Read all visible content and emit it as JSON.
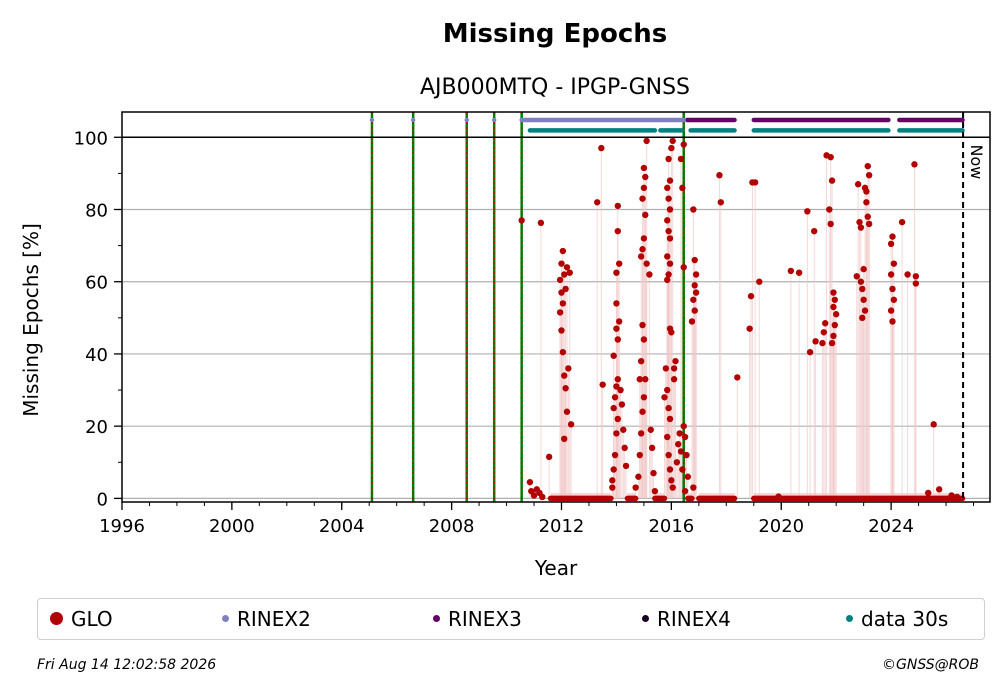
{
  "chart_data": {
    "type": "scatter",
    "title": "Missing Epochs",
    "subtitle": "AJB000MTQ - IPGP-GNSS",
    "xlabel": "Year",
    "ylabel": "Missing Epochs [%]",
    "xlim": [
      1996,
      2027.6
    ],
    "ylim": [
      -1,
      107
    ],
    "xticks": [
      1996,
      2000,
      2004,
      2008,
      2012,
      2016,
      2020,
      2024
    ],
    "yticks": [
      0,
      20,
      40,
      60,
      80,
      100
    ],
    "grid": true,
    "now_label": "Now",
    "now_x": 2026.62,
    "legend_position": "bottom",
    "legend": [
      {
        "name": "GLO",
        "color": "#b30000",
        "size": 6
      },
      {
        "name": "RINEX2",
        "color": "#8080c0",
        "size": 3
      },
      {
        "name": "RINEX3",
        "color": "#660066",
        "size": 3
      },
      {
        "name": "RINEX4",
        "color": "#1a0022",
        "size": 3
      },
      {
        "name": "data 30s",
        "color": "#008080",
        "size": 3
      }
    ],
    "event_lines_x": [
      2005.1,
      2006.6,
      2008.55,
      2009.55,
      2010.55,
      2016.45
    ],
    "availability_rows": [
      {
        "series": "RINEX2",
        "y": 104.8,
        "color": "#8080c0",
        "segments": [
          [
            2005.1,
            2005.1
          ],
          [
            2006.6,
            2006.6
          ],
          [
            2008.55,
            2008.55
          ],
          [
            2009.55,
            2009.55
          ],
          [
            2010.55,
            2016.6
          ]
        ]
      },
      {
        "series": "RINEX3",
        "y": 104.8,
        "color": "#660066",
        "segments": [
          [
            2016.6,
            2018.3
          ],
          [
            2019.0,
            2023.9
          ],
          [
            2024.3,
            2026.6
          ]
        ]
      },
      {
        "series": "data 30s",
        "y": 101.9,
        "color": "#008080",
        "segments": [
          [
            2010.85,
            2015.4
          ],
          [
            2015.6,
            2016.4
          ],
          [
            2016.7,
            2018.3
          ],
          [
            2019.0,
            2023.9
          ],
          [
            2024.3,
            2026.6
          ]
        ]
      }
    ],
    "glo_points": [
      [
        2010.55,
        77.0
      ],
      [
        2010.85,
        4.5
      ],
      [
        2010.9,
        2.0
      ],
      [
        2011.0,
        0.8
      ],
      [
        2011.2,
        1.5
      ],
      [
        2011.3,
        0.4
      ],
      [
        2011.1,
        2.5
      ],
      [
        2011.25,
        76.3
      ],
      [
        2011.55,
        11.5
      ],
      [
        2011.95,
        60.5
      ],
      [
        2012.0,
        65.0
      ],
      [
        2012.05,
        68.5
      ],
      [
        2012.1,
        62.0
      ],
      [
        2012.15,
        58.0
      ],
      [
        2012.2,
        64.0
      ],
      [
        2012.0,
        46.5
      ],
      [
        2012.05,
        40.5
      ],
      [
        2012.1,
        34.0
      ],
      [
        2012.15,
        30.5
      ],
      [
        2012.2,
        24.0
      ],
      [
        2012.1,
        16.5
      ],
      [
        2012.25,
        36.0
      ],
      [
        2012.35,
        20.5
      ],
      [
        2012.3,
        62.5
      ],
      [
        2012.0,
        57.0
      ],
      [
        2012.05,
        54.0
      ],
      [
        2011.95,
        51.5
      ],
      [
        2013.3,
        82.0
      ],
      [
        2013.45,
        97.0
      ],
      [
        2013.5,
        31.5
      ],
      [
        2013.85,
        5.0
      ],
      [
        2013.9,
        8.0
      ],
      [
        2013.95,
        12.0
      ],
      [
        2014.0,
        18.0
      ],
      [
        2014.05,
        22.0
      ],
      [
        2013.9,
        25.0
      ],
      [
        2013.95,
        28.0
      ],
      [
        2014.0,
        31.0
      ],
      [
        2014.05,
        33.0
      ],
      [
        2013.9,
        39.5
      ],
      [
        2014.0,
        47.0
      ],
      [
        2014.05,
        44.0
      ],
      [
        2014.1,
        49.0
      ],
      [
        2014.15,
        30.0
      ],
      [
        2014.2,
        26.0
      ],
      [
        2014.25,
        19.0
      ],
      [
        2014.3,
        14.0
      ],
      [
        2014.35,
        9.0
      ],
      [
        2014.0,
        62.5
      ],
      [
        2014.1,
        65.0
      ],
      [
        2014.05,
        74.0
      ],
      [
        2014.05,
        81.0
      ],
      [
        2014.0,
        54.0
      ],
      [
        2013.85,
        3.0
      ],
      [
        2014.7,
        3.0
      ],
      [
        2014.8,
        6.0
      ],
      [
        2014.85,
        12.0
      ],
      [
        2014.9,
        18.0
      ],
      [
        2014.95,
        24.0
      ],
      [
        2015.0,
        28.0
      ],
      [
        2015.05,
        33.0
      ],
      [
        2014.9,
        38.0
      ],
      [
        2015.0,
        44.0
      ],
      [
        2014.95,
        48.0
      ],
      [
        2014.85,
        33.0
      ],
      [
        2014.9,
        67.0
      ],
      [
        2014.95,
        69.0
      ],
      [
        2015.0,
        72.0
      ],
      [
        2015.05,
        78.5
      ],
      [
        2014.95,
        83.0
      ],
      [
        2015.0,
        86.0
      ],
      [
        2015.05,
        89.0
      ],
      [
        2015.0,
        91.5
      ],
      [
        2015.1,
        99.0
      ],
      [
        2015.1,
        65.0
      ],
      [
        2015.2,
        62.0
      ],
      [
        2015.25,
        19.0
      ],
      [
        2015.3,
        14.0
      ],
      [
        2015.35,
        7.0
      ],
      [
        2015.4,
        2.0
      ],
      [
        2015.75,
        28.0
      ],
      [
        2015.8,
        36.0
      ],
      [
        2015.85,
        30.0
      ],
      [
        2015.9,
        25.0
      ],
      [
        2015.95,
        22.0
      ],
      [
        2015.85,
        17.0
      ],
      [
        2015.9,
        12.0
      ],
      [
        2015.95,
        8.0
      ],
      [
        2016.0,
        5.0
      ],
      [
        2016.05,
        3.0
      ],
      [
        2015.95,
        47.0
      ],
      [
        2016.0,
        46.0
      ],
      [
        2015.85,
        60.5
      ],
      [
        2015.9,
        62.0
      ],
      [
        2015.95,
        65.0
      ],
      [
        2015.85,
        67.0
      ],
      [
        2015.95,
        72.0
      ],
      [
        2015.9,
        74.0
      ],
      [
        2015.85,
        77.0
      ],
      [
        2015.95,
        80.0
      ],
      [
        2015.9,
        83.0
      ],
      [
        2015.85,
        86.0
      ],
      [
        2015.95,
        88.0
      ],
      [
        2015.9,
        94.0
      ],
      [
        2016.0,
        97.0
      ],
      [
        2016.05,
        99.0
      ],
      [
        2016.1,
        36.0
      ],
      [
        2016.15,
        38.0
      ],
      [
        2016.1,
        33.0
      ],
      [
        2016.2,
        10.0
      ],
      [
        2016.25,
        15.0
      ],
      [
        2016.3,
        18.0
      ],
      [
        2016.35,
        13.0
      ],
      [
        2016.4,
        8.0
      ],
      [
        2016.45,
        20.0
      ],
      [
        2016.5,
        17.0
      ],
      [
        2016.55,
        12.0
      ],
      [
        2016.6,
        6.0
      ],
      [
        2016.5,
        2.0
      ],
      [
        2016.35,
        94.0
      ],
      [
        2016.4,
        86.0
      ],
      [
        2016.45,
        98.0
      ],
      [
        2016.45,
        64.0
      ],
      [
        2016.8,
        80.0
      ],
      [
        2016.85,
        66.0
      ],
      [
        2016.9,
        62.0
      ],
      [
        2016.85,
        59.0
      ],
      [
        2016.9,
        57.0
      ],
      [
        2016.8,
        55.0
      ],
      [
        2016.85,
        52.0
      ],
      [
        2016.75,
        49.0
      ],
      [
        2016.8,
        3.0
      ],
      [
        2017.75,
        89.5
      ],
      [
        2017.8,
        82.0
      ],
      [
        2018.4,
        33.5
      ],
      [
        2018.85,
        47.0
      ],
      [
        2018.9,
        56.0
      ],
      [
        2018.95,
        87.5
      ],
      [
        2019.05,
        87.5
      ],
      [
        2019.2,
        60.0
      ],
      [
        2019.9,
        0.5
      ],
      [
        2020.35,
        63.0
      ],
      [
        2020.65,
        62.5
      ],
      [
        2020.95,
        79.5
      ],
      [
        2021.05,
        40.5
      ],
      [
        2021.2,
        74.0
      ],
      [
        2021.25,
        43.5
      ],
      [
        2021.5,
        43.0
      ],
      [
        2021.55,
        46.0
      ],
      [
        2021.6,
        48.5
      ],
      [
        2021.65,
        95.0
      ],
      [
        2021.8,
        94.5
      ],
      [
        2021.75,
        80.0
      ],
      [
        2021.8,
        76.0
      ],
      [
        2021.85,
        88.0
      ],
      [
        2021.9,
        57.0
      ],
      [
        2021.95,
        55.0
      ],
      [
        2021.9,
        53.0
      ],
      [
        2022.0,
        51.0
      ],
      [
        2021.95,
        48.0
      ],
      [
        2021.85,
        43.0
      ],
      [
        2021.9,
        45.0
      ],
      [
        2022.75,
        61.5
      ],
      [
        2022.8,
        87.0
      ],
      [
        2022.85,
        76.5
      ],
      [
        2022.9,
        60.0
      ],
      [
        2022.95,
        58.0
      ],
      [
        2023.0,
        55.0
      ],
      [
        2023.05,
        52.0
      ],
      [
        2022.95,
        50.0
      ],
      [
        2023.0,
        63.5
      ],
      [
        2023.05,
        86.0
      ],
      [
        2023.1,
        82.0
      ],
      [
        2023.15,
        92.0
      ],
      [
        2023.2,
        89.5
      ],
      [
        2023.1,
        85.0
      ],
      [
        2023.15,
        78.0
      ],
      [
        2023.2,
        76.0
      ],
      [
        2022.9,
        75.0
      ],
      [
        2024.0,
        70.5
      ],
      [
        2024.05,
        72.5
      ],
      [
        2024.1,
        65.0
      ],
      [
        2024.0,
        62.0
      ],
      [
        2024.05,
        58.0
      ],
      [
        2024.1,
        55.0
      ],
      [
        2024.0,
        52.0
      ],
      [
        2024.05,
        49.0
      ],
      [
        2024.4,
        76.5
      ],
      [
        2024.6,
        62.0
      ],
      [
        2024.85,
        92.5
      ],
      [
        2024.9,
        61.5
      ],
      [
        2024.9,
        59.5
      ],
      [
        2025.35,
        1.5
      ],
      [
        2025.55,
        20.5
      ],
      [
        2025.75,
        2.5
      ],
      [
        2026.2,
        0.8
      ],
      [
        2026.4,
        0.4
      ]
    ],
    "glo_zero_segments": [
      [
        2011.6,
        2013.8
      ],
      [
        2014.4,
        2014.7
      ],
      [
        2015.4,
        2015.75
      ],
      [
        2016.6,
        2016.75
      ],
      [
        2017.0,
        2018.3
      ],
      [
        2019.0,
        2026.6
      ]
    ]
  },
  "footer": {
    "timestamp": "Fri Aug 14 12:02:58 2026",
    "copyright": "©GNSS@ROB"
  }
}
